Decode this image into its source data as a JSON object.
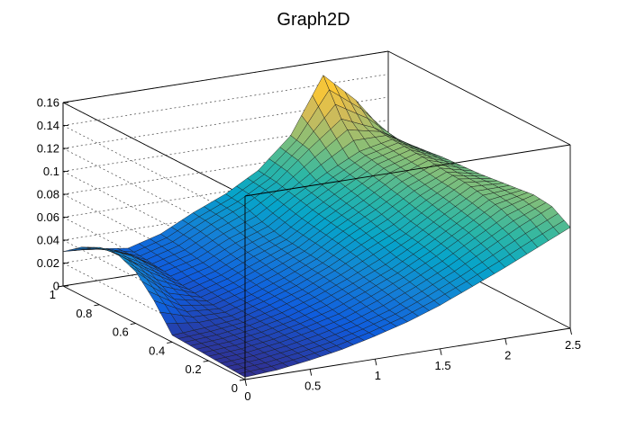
{
  "chart_data": {
    "type": "surface",
    "title": "Graph2D",
    "xlabel": "",
    "ylabel": "",
    "zlabel": "",
    "xlim": [
      0,
      2.5
    ],
    "ylim": [
      0,
      1
    ],
    "zlim": [
      0,
      0.16
    ],
    "x_ticks": [
      0,
      0.5,
      1,
      1.5,
      2,
      2.5
    ],
    "y_ticks": [
      0,
      0.2,
      0.4,
      0.6,
      0.8,
      1
    ],
    "z_ticks": [
      0,
      0.02,
      0.04,
      0.06,
      0.08,
      0.1,
      0.12,
      0.14,
      0.16
    ],
    "x_tick_labels": [
      "0",
      "0.5",
      "1",
      "1.5",
      "2",
      "2.5"
    ],
    "y_tick_labels": [
      "0",
      "0.2",
      "0.4",
      "0.6",
      "0.8",
      "1"
    ],
    "z_tick_labels": [
      "0",
      "0.02",
      "0.04",
      "0.06",
      "0.08",
      "0.1",
      "0.12",
      "0.14",
      "0.16"
    ],
    "grid": true,
    "palette": [
      "#352a87",
      "#0f5cdd",
      "#1481d6",
      "#06a4ca",
      "#2eb7a4",
      "#87bf77",
      "#d1bb59",
      "#fec832",
      "#f9fb0e"
    ],
    "surface": {
      "x": [
        0,
        0.25,
        0.5,
        0.75,
        1,
        1.25,
        1.5,
        1.75,
        2,
        2.25,
        2.5
      ],
      "y": [
        0,
        0.1,
        0.2,
        0.3,
        0.4,
        0.5,
        0.6,
        0.7,
        0.8,
        0.9,
        1
      ],
      "z_rows_by_y": [
        [
          0.002,
          0.004,
          0.008,
          0.013,
          0.02,
          0.028,
          0.038,
          0.05,
          0.062,
          0.075,
          0.088
        ],
        [
          0.003,
          0.005,
          0.009,
          0.014,
          0.021,
          0.03,
          0.042,
          0.055,
          0.07,
          0.085,
          0.098
        ],
        [
          0.004,
          0.006,
          0.01,
          0.016,
          0.023,
          0.034,
          0.046,
          0.06,
          0.076,
          0.092,
          0.1
        ],
        [
          0.005,
          0.007,
          0.011,
          0.017,
          0.026,
          0.037,
          0.049,
          0.064,
          0.08,
          0.096,
          0.098
        ],
        [
          0.006,
          0.008,
          0.011,
          0.019,
          0.028,
          0.04,
          0.054,
          0.067,
          0.084,
          0.099,
          0.096
        ],
        [
          0.028,
          0.014,
          0.012,
          0.02,
          0.03,
          0.042,
          0.058,
          0.072,
          0.088,
          0.1,
          0.094
        ],
        [
          0.045,
          0.022,
          0.014,
          0.022,
          0.033,
          0.044,
          0.061,
          0.076,
          0.092,
          0.102,
          0.093
        ],
        [
          0.052,
          0.032,
          0.016,
          0.024,
          0.036,
          0.046,
          0.064,
          0.08,
          0.095,
          0.103,
          0.092
        ],
        [
          0.05,
          0.038,
          0.02,
          0.027,
          0.04,
          0.05,
          0.068,
          0.084,
          0.098,
          0.104,
          0.09
        ],
        [
          0.042,
          0.035,
          0.022,
          0.03,
          0.044,
          0.056,
          0.072,
          0.096,
          0.118,
          0.106,
          0.088
        ],
        [
          0.03,
          0.028,
          0.024,
          0.032,
          0.046,
          0.058,
          0.074,
          0.1,
          0.148,
          0.122,
          0.086
        ]
      ]
    }
  }
}
